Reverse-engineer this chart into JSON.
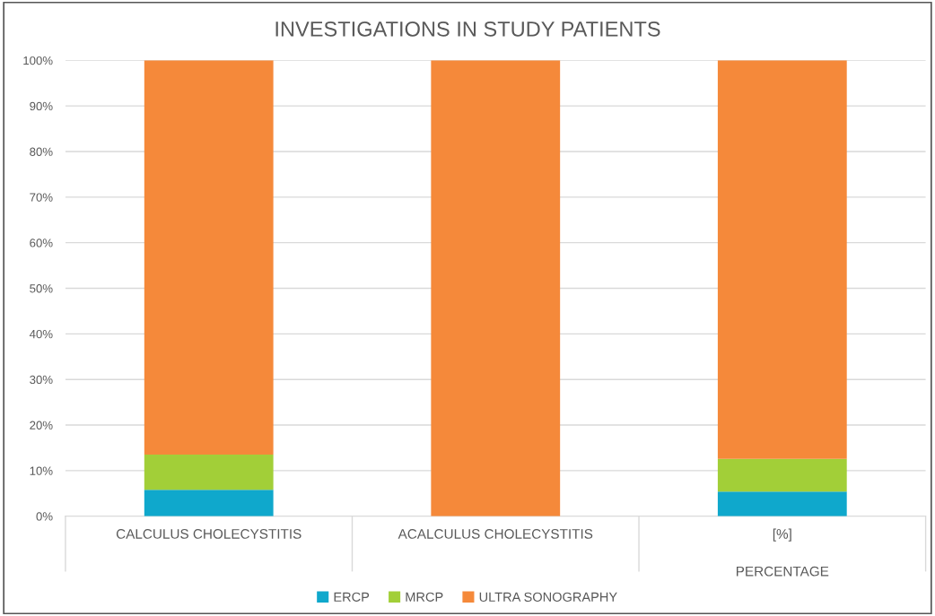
{
  "chart_data": {
    "type": "bar",
    "title": "INVESTIGATIONS IN STUDY PATIENTS",
    "stacked": true,
    "categories": [
      "CALCULUS CHOLECYSTITIS",
      "ACALCULUS CHOLECYSTITIS",
      "[%]\n\nPERCENTAGE"
    ],
    "series": [
      {
        "name": "ERCP",
        "color": "#0fa8cc",
        "values": [
          5.8,
          0,
          5.4
        ]
      },
      {
        "name": "MRCP",
        "color": "#a2cf38",
        "values": [
          7.7,
          0,
          7.2
        ]
      },
      {
        "name": "ULTRA SONOGRAPHY",
        "color": "#f5893a",
        "values": [
          86.5,
          100,
          87.4
        ]
      }
    ],
    "ylim": [
      0,
      100
    ],
    "yticks": [
      {
        "value": 0,
        "label": "0%"
      },
      {
        "value": 10,
        "label": "10%"
      },
      {
        "value": 20,
        "label": "20%"
      },
      {
        "value": 30,
        "label": "30%"
      },
      {
        "value": 40,
        "label": "40%"
      },
      {
        "value": 50,
        "label": "50%"
      },
      {
        "value": 60,
        "label": "60%"
      },
      {
        "value": 70,
        "label": "70%"
      },
      {
        "value": 80,
        "label": "80%"
      },
      {
        "value": 90,
        "label": "90%"
      },
      {
        "value": 100,
        "label": "100%"
      }
    ],
    "grid": "y",
    "legend": "bottom"
  }
}
